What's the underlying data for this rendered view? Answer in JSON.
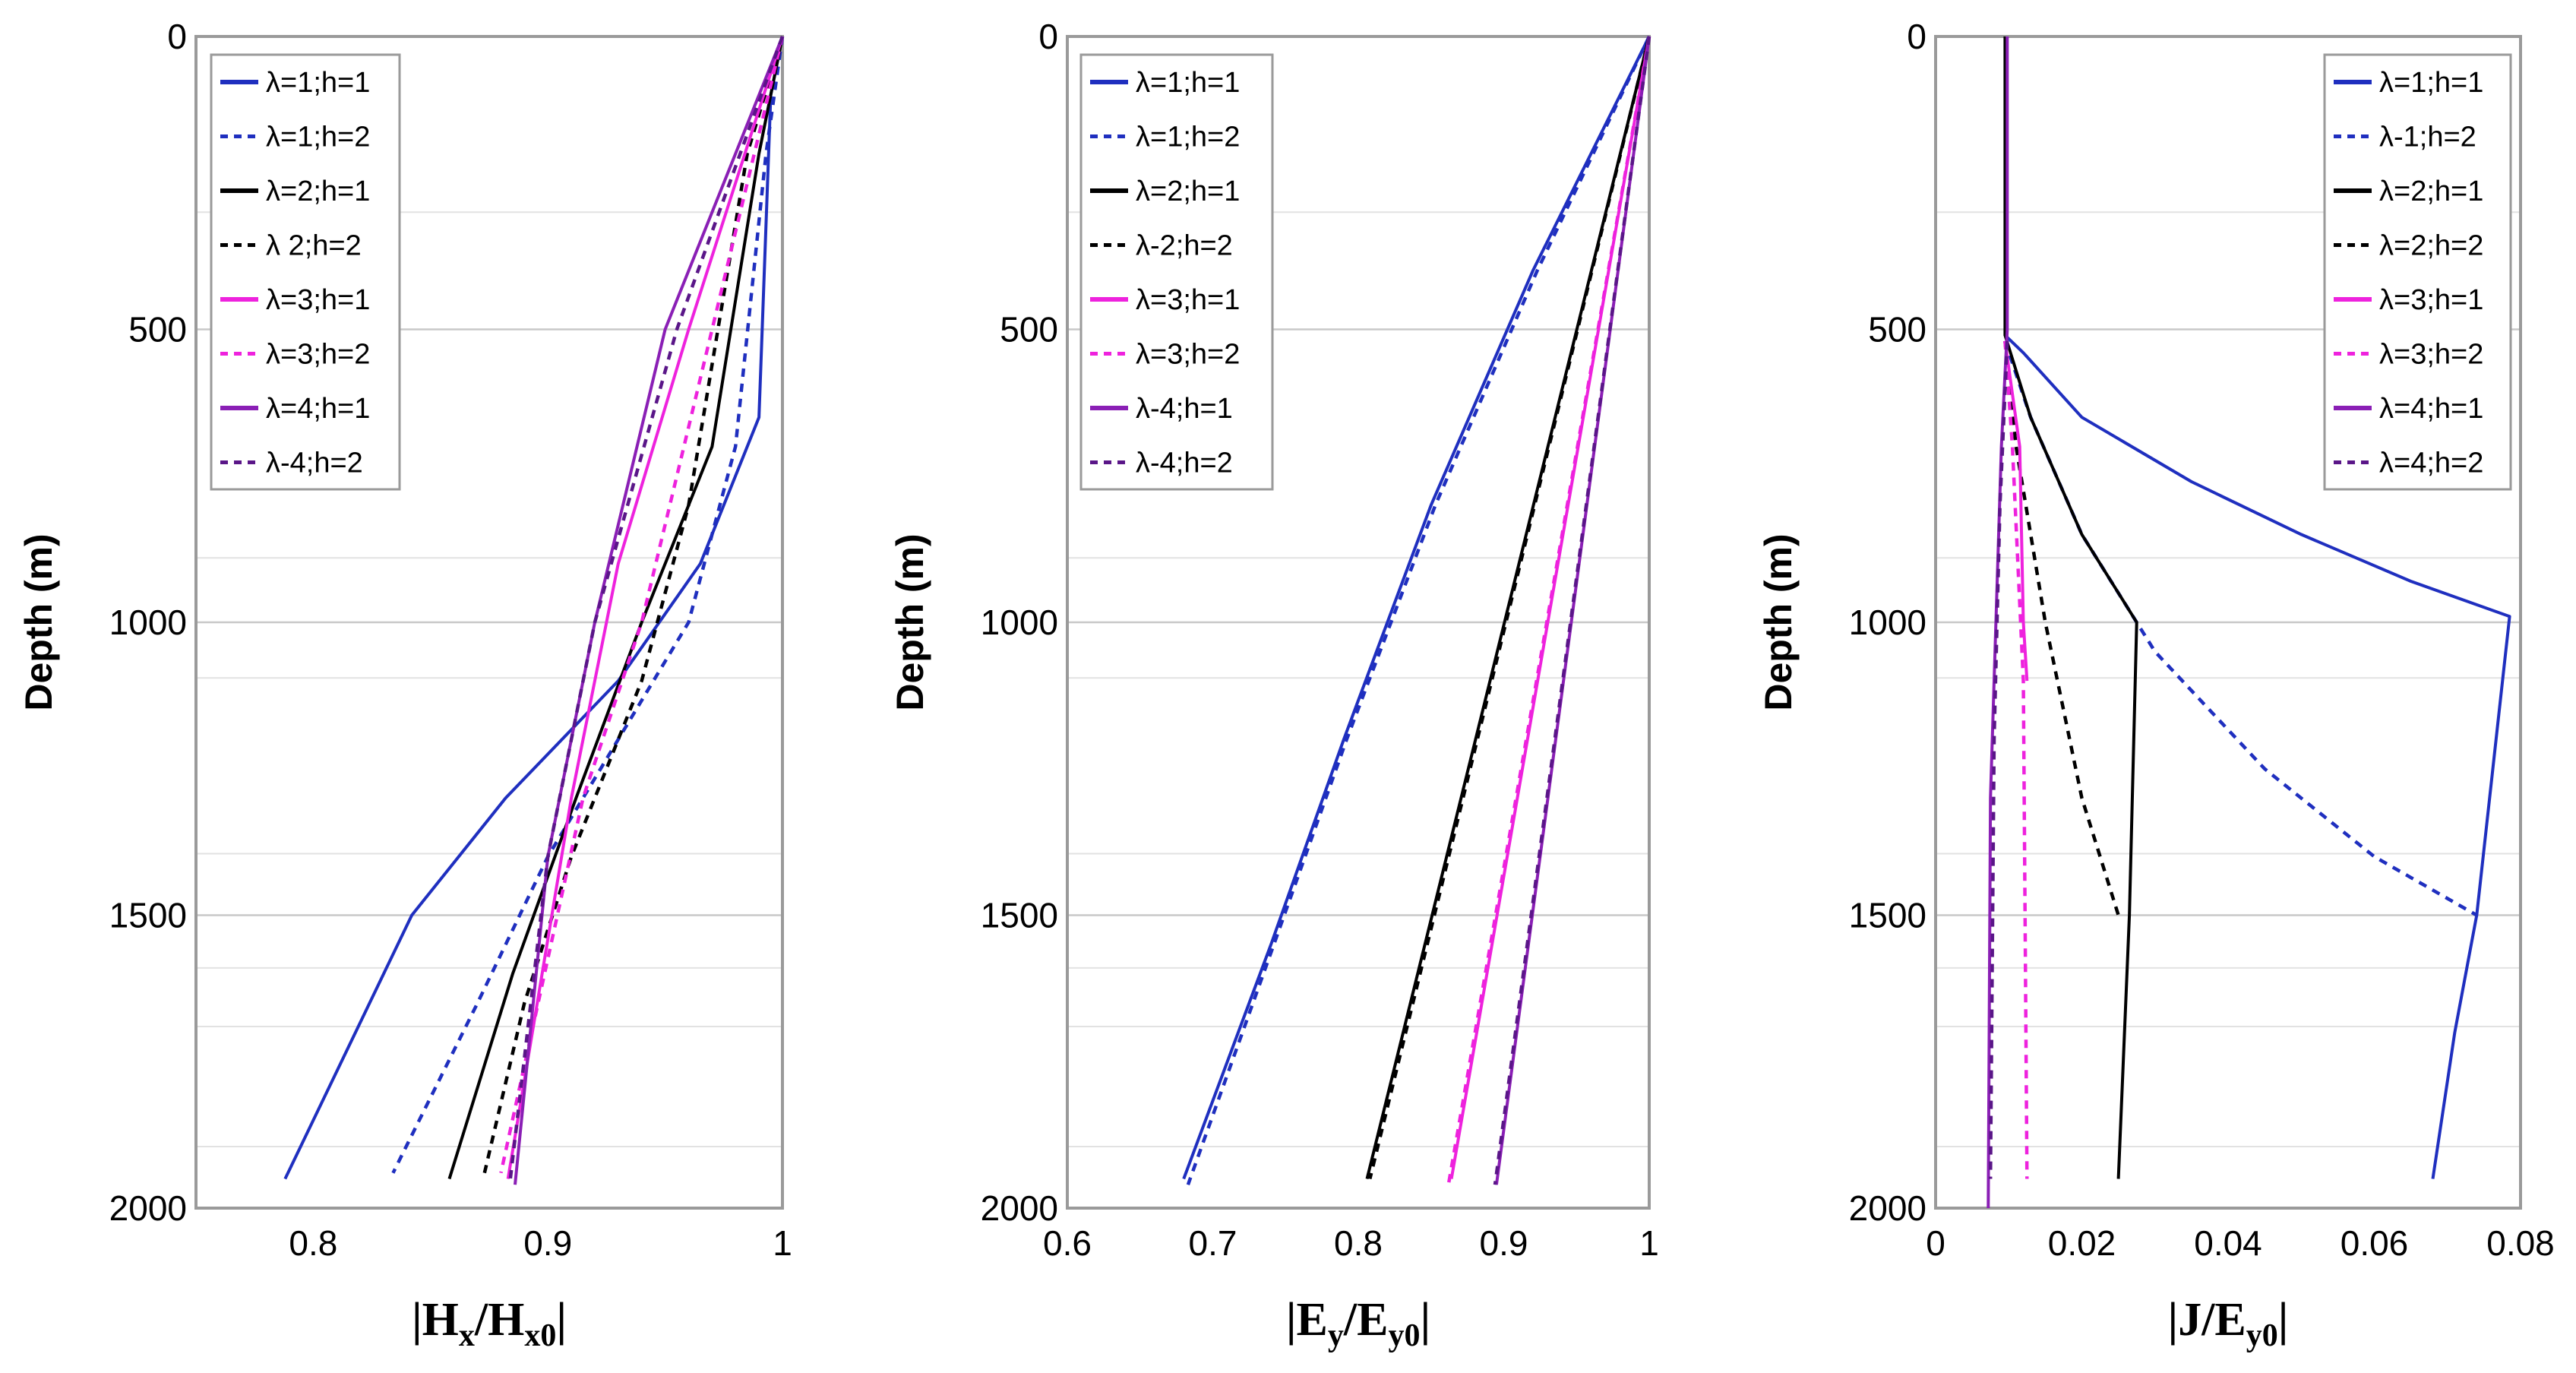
{
  "chart_data": [
    {
      "type": "line",
      "ylabel": "Depth (m)",
      "xlabel": {
        "main": "|H",
        "sub1": "x",
        "mid": "/H",
        "sub2": "x0",
        "tail": "|"
      },
      "xlim": [
        0.75,
        1.0
      ],
      "ylim": [
        0,
        2000
      ],
      "y_inverted": true,
      "xticks": [
        0.8,
        0.9,
        1.0
      ],
      "xtick_labels": [
        "0.8",
        "0.9",
        "1"
      ],
      "yticks": [
        0,
        500,
        1000,
        1500,
        2000
      ],
      "ytick_labels": [
        "0",
        "500",
        "1000",
        "1500",
        "2000"
      ],
      "legend_position": "top-left",
      "series": [
        {
          "name": "λ=1;h=1",
          "color": "#1f2fbf",
          "dash": "solid",
          "x": [
            1.0,
            0.995,
            0.99,
            0.965,
            0.93,
            0.882,
            0.842,
            0.788
          ],
          "y": [
            0,
            100,
            650,
            900,
            1100,
            1300,
            1500,
            1950
          ]
        },
        {
          "name": "λ=1;h=2",
          "color": "#1f2fbf",
          "dash": "dash",
          "x": [
            1.0,
            0.993,
            0.98,
            0.96,
            0.93,
            0.9,
            0.87,
            0.834
          ],
          "y": [
            0,
            200,
            700,
            1000,
            1200,
            1400,
            1650,
            1940
          ]
        },
        {
          "name": "λ=2;h=1",
          "color": "#000000",
          "dash": "solid",
          "x": [
            1.0,
            0.99,
            0.97,
            0.94,
            0.912,
            0.885,
            0.858
          ],
          "y": [
            0,
            200,
            700,
            1000,
            1300,
            1600,
            1950
          ]
        },
        {
          "name": "λ 2;h=2",
          "color": "#000000",
          "dash": "dash",
          "x": [
            1.0,
            0.985,
            0.96,
            0.94,
            0.91,
            0.89,
            0.873
          ],
          "y": [
            0,
            200,
            800,
            1100,
            1400,
            1650,
            1940
          ]
        },
        {
          "name": "λ=3;h=1",
          "color": "#ee22dd",
          "dash": "solid",
          "x": [
            1.0,
            0.96,
            0.93,
            0.91,
            0.883
          ],
          "y": [
            0,
            500,
            900,
            1300,
            1950
          ]
        },
        {
          "name": "λ=3;h=2",
          "color": "#ee22dd",
          "dash": "dash",
          "x": [
            1.0,
            0.97,
            0.94,
            0.915,
            0.88
          ],
          "y": [
            0,
            500,
            1000,
            1300,
            1940
          ]
        },
        {
          "name": "λ=4;h=1",
          "color": "#8a1fb5",
          "dash": "solid",
          "x": [
            1.0,
            0.95,
            0.92,
            0.9,
            0.886
          ],
          "y": [
            0,
            500,
            1000,
            1400,
            1960
          ]
        },
        {
          "name": "λ-4;h=2",
          "color": "#5a1688",
          "dash": "dash",
          "x": [
            1.0,
            0.955,
            0.92,
            0.9,
            0.884
          ],
          "y": [
            0,
            500,
            1000,
            1400,
            1950
          ]
        }
      ]
    },
    {
      "type": "line",
      "ylabel": "Depth (m)",
      "xlabel": {
        "main": "|E",
        "sub1": "y",
        "mid": "/E",
        "sub2": "y0",
        "tail": "|"
      },
      "xlim": [
        0.6,
        1.0
      ],
      "ylim": [
        0,
        2000
      ],
      "y_inverted": true,
      "xticks": [
        0.6,
        0.7,
        0.8,
        0.9,
        1.0
      ],
      "xtick_labels": [
        "0.6",
        "0.7",
        "0.8",
        "0.9",
        "1"
      ],
      "yticks": [
        0,
        500,
        1000,
        1500,
        2000
      ],
      "ytick_labels": [
        "0",
        "500",
        "1000",
        "1500",
        "2000"
      ],
      "legend_position": "top-left",
      "series": [
        {
          "name": "λ=1;h=1",
          "color": "#1f2fbf",
          "dash": "solid",
          "x": [
            1.0,
            0.92,
            0.85,
            0.79,
            0.74,
            0.68
          ],
          "y": [
            0,
            400,
            800,
            1200,
            1550,
            1950
          ]
        },
        {
          "name": "λ=1;h=2",
          "color": "#1f2fbf",
          "dash": "dash",
          "x": [
            1.0,
            0.923,
            0.853,
            0.792,
            0.742,
            0.683
          ],
          "y": [
            0,
            400,
            800,
            1200,
            1550,
            1960
          ]
        },
        {
          "name": "λ=2;h=1",
          "color": "#000000",
          "dash": "solid",
          "x": [
            1.0,
            0.806
          ],
          "y": [
            0,
            1950
          ]
        },
        {
          "name": "λ-2;h=2",
          "color": "#000000",
          "dash": "dash",
          "x": [
            1.0,
            0.808
          ],
          "y": [
            0,
            1950
          ]
        },
        {
          "name": "λ=3;h=1",
          "color": "#ee22dd",
          "dash": "solid",
          "x": [
            1.0,
            0.864
          ],
          "y": [
            0,
            1950
          ]
        },
        {
          "name": "λ=3;h=2",
          "color": "#ee22dd",
          "dash": "dash",
          "x": [
            1.0,
            0.862
          ],
          "y": [
            0,
            1960
          ]
        },
        {
          "name": "λ-4;h=1",
          "color": "#8a1fb5",
          "dash": "solid",
          "x": [
            1.0,
            0.895
          ],
          "y": [
            0,
            1960
          ]
        },
        {
          "name": "λ-4;h=2",
          "color": "#5a1688",
          "dash": "dash",
          "x": [
            1.0,
            0.894
          ],
          "y": [
            0,
            1960
          ]
        }
      ]
    },
    {
      "type": "line",
      "ylabel": "Depth (m)",
      "xlabel": {
        "main": "|J/E",
        "sub1": "",
        "mid": "",
        "sub2": "y0",
        "tail": "|"
      },
      "xlim": [
        0,
        0.08
      ],
      "ylim": [
        0,
        2000
      ],
      "y_inverted": true,
      "xticks": [
        0,
        0.02,
        0.04,
        0.06,
        0.08
      ],
      "xtick_labels": [
        "0",
        "0.02",
        "0.04",
        "0.06",
        "0.08"
      ],
      "yticks": [
        0,
        500,
        1000,
        1500,
        2000
      ],
      "ytick_labels": [
        "0",
        "500",
        "1000",
        "1500",
        "2000"
      ],
      "legend_position": "top-right",
      "series": [
        {
          "name": "λ=1;h=1",
          "color": "#1f2fbf",
          "dash": "solid",
          "x": [
            0.0095,
            0.012,
            0.02,
            0.035,
            0.05,
            0.065,
            0.0785,
            0.074,
            0.071,
            0.068
          ],
          "y": [
            510,
            540,
            650,
            760,
            850,
            930,
            990,
            1500,
            1700,
            1950
          ]
        },
        {
          "name": "λ-1;h=2",
          "color": "#1f2fbf",
          "dash": "dash",
          "x": [
            0.0095,
            0.013,
            0.02,
            0.03,
            0.045,
            0.06,
            0.074
          ],
          "y": [
            520,
            650,
            850,
            1050,
            1250,
            1400,
            1500
          ]
        },
        {
          "name": "λ=2;h=1",
          "color": "#000000",
          "dash": "solid",
          "x": [
            0.0095,
            0.0095,
            0.013,
            0.02,
            0.0275,
            0.0265,
            0.025
          ],
          "y": [
            0,
            510,
            650,
            850,
            1000,
            1500,
            1950
          ]
        },
        {
          "name": "λ=2;h=2",
          "color": "#000000",
          "dash": "dash",
          "x": [
            0.0095,
            0.011,
            0.015,
            0.02,
            0.025
          ],
          "y": [
            520,
            700,
            1000,
            1300,
            1500
          ]
        },
        {
          "name": "λ=3;h=1",
          "color": "#ee22dd",
          "dash": "solid",
          "x": [
            0.0095,
            0.0115,
            0.012,
            0.0125
          ],
          "y": [
            520,
            700,
            1000,
            1100
          ]
        },
        {
          "name": "λ=3;h=2",
          "color": "#ee22dd",
          "dash": "dash",
          "x": [
            0.0095,
            0.0105,
            0.012,
            0.0125
          ],
          "y": [
            520,
            700,
            1100,
            1950
          ]
        },
        {
          "name": "λ=4;h=1",
          "color": "#8a1fb5",
          "dash": "solid",
          "x": [
            0.0098,
            0.0098,
            0.009,
            0.0075,
            0.0072
          ],
          "y": [
            0,
            500,
            700,
            1300,
            2000
          ]
        },
        {
          "name": "λ=4;h=2",
          "color": "#5a1688",
          "dash": "dash",
          "x": [
            0.0098,
            0.0088,
            0.008,
            0.0075
          ],
          "y": [
            520,
            800,
            1200,
            1950
          ]
        }
      ]
    }
  ]
}
